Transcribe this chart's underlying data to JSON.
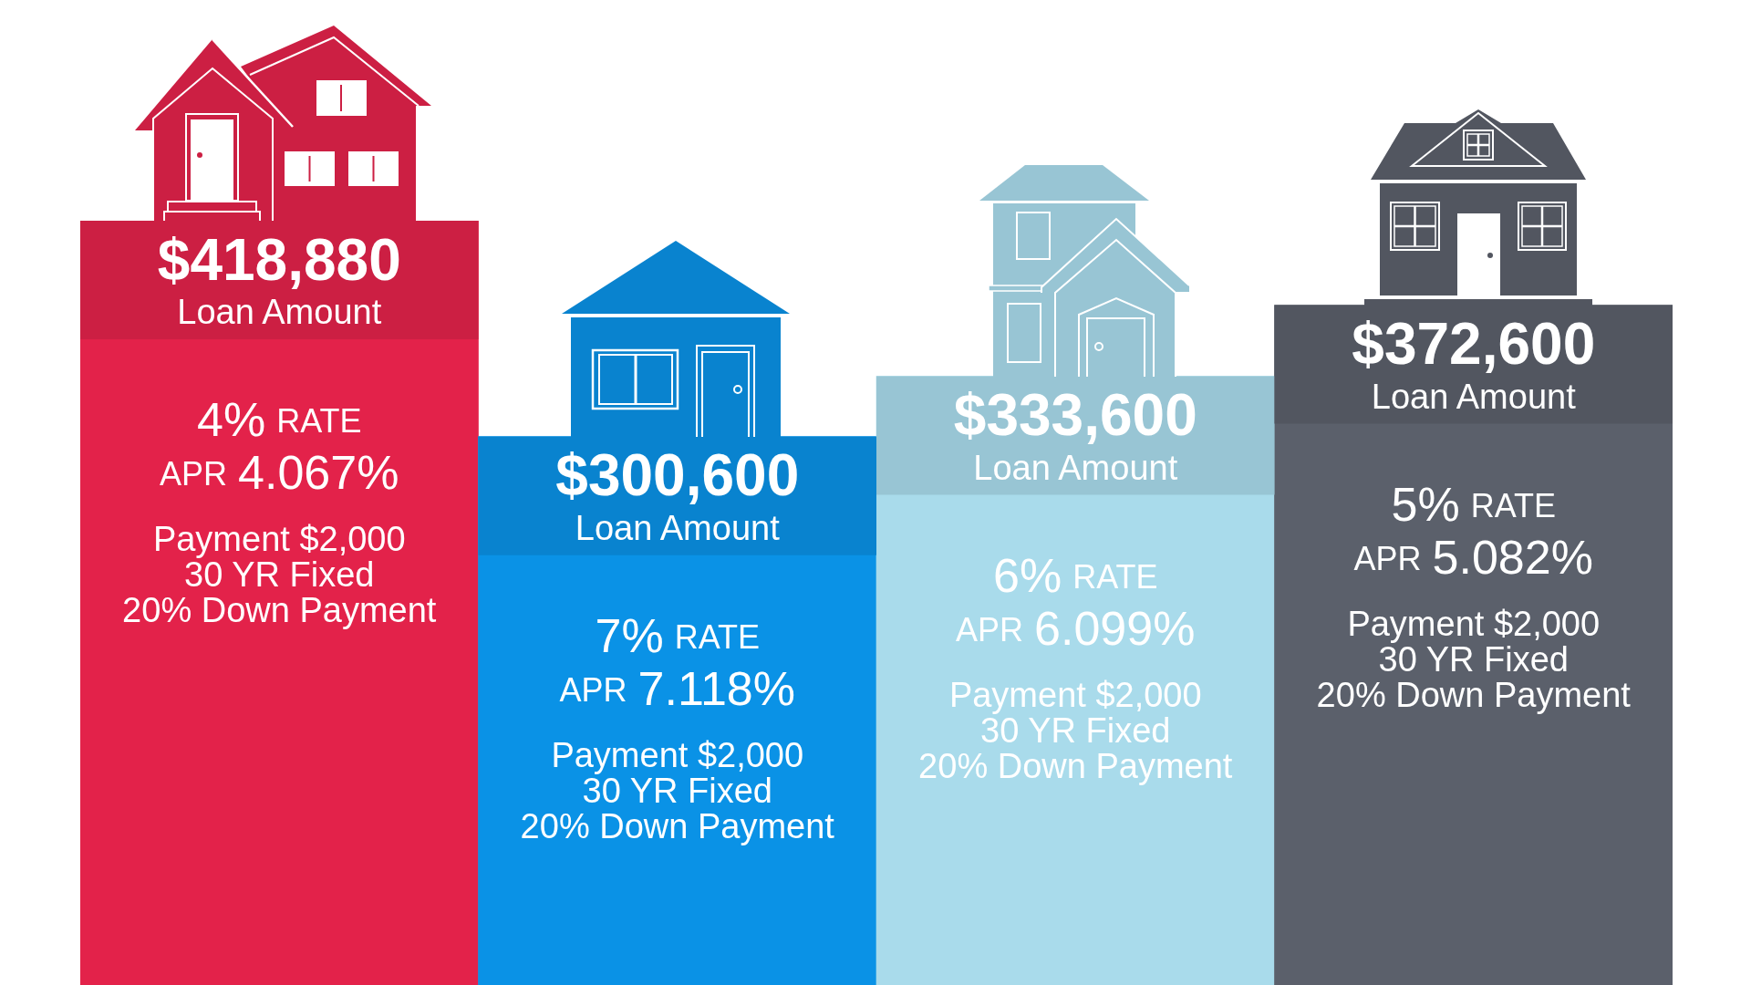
{
  "chart_data": {
    "type": "bar",
    "categories": [
      "4% RATE",
      "7% RATE",
      "6% RATE",
      "5% RATE"
    ],
    "values": [
      418880,
      300600,
      333600,
      372600
    ],
    "value_labels": [
      "$418,880",
      "$300,600",
      "$333,600",
      "$372,600"
    ],
    "colors": [
      "#e3224a",
      "#0a92e6",
      "#a9dbeb",
      "#5b606b"
    ],
    "annotations": [
      "Loan Amount",
      "APR 4.067%",
      "Payment $2,000",
      "30 YR Fixed",
      "20% Down Payment",
      "Loan Amount",
      "APR 7.118%",
      "Payment $2,000",
      "30 YR Fixed",
      "20% Down Payment",
      "Loan Amount",
      "APR 6.099%",
      "Payment $2,000",
      "30 YR Fixed",
      "20% Down Payment",
      "Loan Amount",
      "APR 5.082%",
      "Payment $2,000",
      "30 YR Fixed",
      "20% Down Payment"
    ]
  }
}
